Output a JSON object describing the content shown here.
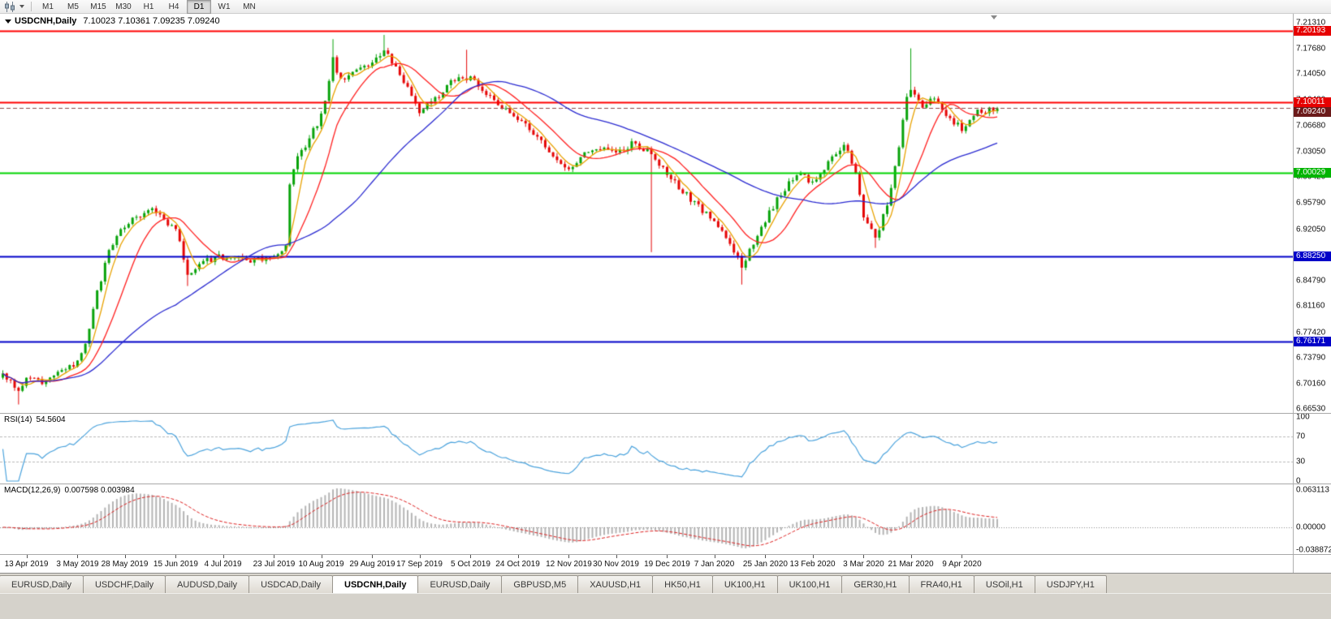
{
  "toolbar": {
    "timeframes": [
      "M1",
      "M5",
      "M15",
      "M30",
      "H1",
      "H4",
      "D1",
      "W1",
      "MN"
    ],
    "active_timeframe": "D1"
  },
  "window": {
    "tabs": [
      "EURUSD,Daily",
      "USDCHF,Daily",
      "AUDUSD,Daily",
      "USDCAD,Daily",
      "USDCNH,Daily",
      "EURUSD,Daily",
      "GBPUSD,M5",
      "XAUUSD,H1",
      "HK50,H1",
      "UK100,H1",
      "UK100,H1",
      "GER30,H1",
      "FRA40,H1",
      "USOil,H1",
      "USDJPY,H1"
    ],
    "active_tab_index": 4
  },
  "chart_data": {
    "type": "candlestick",
    "symbol": "USDCNH",
    "period": "Daily",
    "title_symbol": "USDCNH,Daily",
    "title_ohlc": "7.10023 7.10361 7.09235 7.09240",
    "open": "7.10023",
    "high": "7.10361",
    "low": "7.09235",
    "close": "7.09240",
    "price_range": {
      "min": 6.66,
      "max": 7.226
    },
    "num_candles": 254,
    "up_color": "#08a30a",
    "down_color": "#e50505",
    "y_axis_labels": [
      "7.21310",
      "7.17680",
      "7.14050",
      "7.10420",
      "7.06680",
      "7.03050",
      "6.99420",
      "6.95790",
      "6.92050",
      "6.84790",
      "6.81160",
      "6.77420",
      "6.73790",
      "6.70160",
      "6.66530"
    ],
    "x_axis_labels": [
      "13 Apr 2019",
      "3 May 2019",
      "28 May 2019",
      "15 Jun 2019",
      "4 Jul 2019",
      "23 Jul 2019",
      "10 Aug 2019",
      "29 Aug 2019",
      "17 Sep 2019",
      "5 Oct 2019",
      "24 Oct 2019",
      "12 Nov 2019",
      "30 Nov 2019",
      "19 Dec 2019",
      "7 Jan 2020",
      "25 Jan 2020",
      "13 Feb 2020",
      "3 Mar 2020",
      "21 Mar 2020",
      "9 Apr 2020"
    ],
    "close_anchors": [
      [
        0,
        6.716
      ],
      [
        4,
        6.69
      ],
      [
        6,
        6.713
      ],
      [
        10,
        6.705
      ],
      [
        14,
        6.72
      ],
      [
        19,
        6.732
      ],
      [
        21,
        6.76
      ],
      [
        24,
        6.83
      ],
      [
        27,
        6.89
      ],
      [
        31,
        6.925
      ],
      [
        35,
        6.94
      ],
      [
        38,
        6.952
      ],
      [
        41,
        6.935
      ],
      [
        44,
        6.92
      ],
      [
        47,
        6.858
      ],
      [
        50,
        6.872
      ],
      [
        56,
        6.882
      ],
      [
        62,
        6.877
      ],
      [
        69,
        6.882
      ],
      [
        72,
        6.896
      ],
      [
        73,
        6.985
      ],
      [
        75,
        7.02
      ],
      [
        78,
        7.05
      ],
      [
        81,
        7.08
      ],
      [
        84,
        7.16
      ],
      [
        86,
        7.13
      ],
      [
        89,
        7.148
      ],
      [
        94,
        7.158
      ],
      [
        97,
        7.176
      ],
      [
        100,
        7.15
      ],
      [
        103,
        7.12
      ],
      [
        106,
        7.088
      ],
      [
        110,
        7.105
      ],
      [
        114,
        7.128
      ],
      [
        119,
        7.138
      ],
      [
        123,
        7.11
      ],
      [
        127,
        7.093
      ],
      [
        131,
        7.077
      ],
      [
        135,
        7.056
      ],
      [
        139,
        7.03
      ],
      [
        144,
        7.006
      ],
      [
        148,
        7.026
      ],
      [
        152,
        7.037
      ],
      [
        156,
        7.028
      ],
      [
        160,
        7.042
      ],
      [
        164,
        7.032
      ],
      [
        169,
        7.0
      ],
      [
        173,
        6.975
      ],
      [
        177,
        6.952
      ],
      [
        181,
        6.936
      ],
      [
        185,
        6.9
      ],
      [
        188,
        6.868
      ],
      [
        191,
        6.9
      ],
      [
        194,
        6.934
      ],
      [
        198,
        6.972
      ],
      [
        202,
        7.0
      ],
      [
        206,
        6.986
      ],
      [
        210,
        7.014
      ],
      [
        214,
        7.042
      ],
      [
        217,
        6.998
      ],
      [
        219,
        6.94
      ],
      [
        222,
        6.906
      ],
      [
        225,
        6.954
      ],
      [
        228,
        7.04
      ],
      [
        230,
        7.11
      ],
      [
        231,
        7.118
      ],
      [
        234,
        7.09
      ],
      [
        237,
        7.108
      ],
      [
        240,
        7.078
      ],
      [
        244,
        7.064
      ],
      [
        248,
        7.086
      ],
      [
        253,
        7.092
      ]
    ],
    "wick_events": [
      {
        "i": 4,
        "low": 6.672
      },
      {
        "i": 47,
        "low": 6.84
      },
      {
        "i": 84,
        "high": 7.19
      },
      {
        "i": 97,
        "high": 7.196
      },
      {
        "i": 118,
        "high": 7.175
      },
      {
        "i": 165,
        "low": 6.888
      },
      {
        "i": 188,
        "low": 6.842
      },
      {
        "i": 222,
        "low": 6.894
      },
      {
        "i": 231,
        "high": 7.177
      }
    ],
    "hlines": [
      {
        "value": 7.20193,
        "label": "7.20193",
        "color": "#ff0000",
        "width": 2,
        "style": "solid",
        "tag_bg": "#e60000"
      },
      {
        "value": 7.10011,
        "label": "7.10011",
        "color": "#ff0000",
        "width": 2,
        "style": "solid",
        "tag_bg": "#e60000"
      },
      {
        "value": 7.0924,
        "label": "7.09240",
        "color": "#8a4a4a",
        "width": 1,
        "style": "dash",
        "tag_bg": "#6b1a1a"
      },
      {
        "value": 7.00029,
        "label": "7.00029",
        "color": "#00d400",
        "width": 2,
        "style": "solid",
        "tag_bg": "#00b400"
      },
      {
        "value": 6.8825,
        "label": "6.88250",
        "color": "#0000c8",
        "width": 2,
        "style": "solid",
        "tag_bg": "#0000c8"
      },
      {
        "value": 6.76171,
        "label": "6.76171",
        "color": "#0000c8",
        "width": 2,
        "style": "solid",
        "tag_bg": "#0000c8"
      }
    ],
    "ma_lines": [
      {
        "name": "fast-ma",
        "period": 5,
        "color": "#e8a200"
      },
      {
        "name": "medium-ma",
        "period": 13,
        "color": "#ff2020"
      },
      {
        "name": "slow-ma",
        "period": 45,
        "color": "#2a2ad0"
      }
    ],
    "rsi": {
      "label": "RSI(14)",
      "current": "54.5604",
      "period": 14,
      "color": "#4aa2dc",
      "levels": [
        100,
        70,
        30,
        0
      ],
      "dashed_levels": [
        70,
        30
      ]
    },
    "macd": {
      "label": "MACD(12,26,9)",
      "current": "0.007598 0.003984",
      "fast": 12,
      "slow": 26,
      "signal_period": 9,
      "axis_labels": [
        "0.063113",
        "0.00000",
        "-0.038872"
      ],
      "hist_color": "#b4b4b4",
      "signal_color": "#dc1e1e",
      "value_range": {
        "min": -0.045,
        "max": 0.072
      }
    }
  }
}
